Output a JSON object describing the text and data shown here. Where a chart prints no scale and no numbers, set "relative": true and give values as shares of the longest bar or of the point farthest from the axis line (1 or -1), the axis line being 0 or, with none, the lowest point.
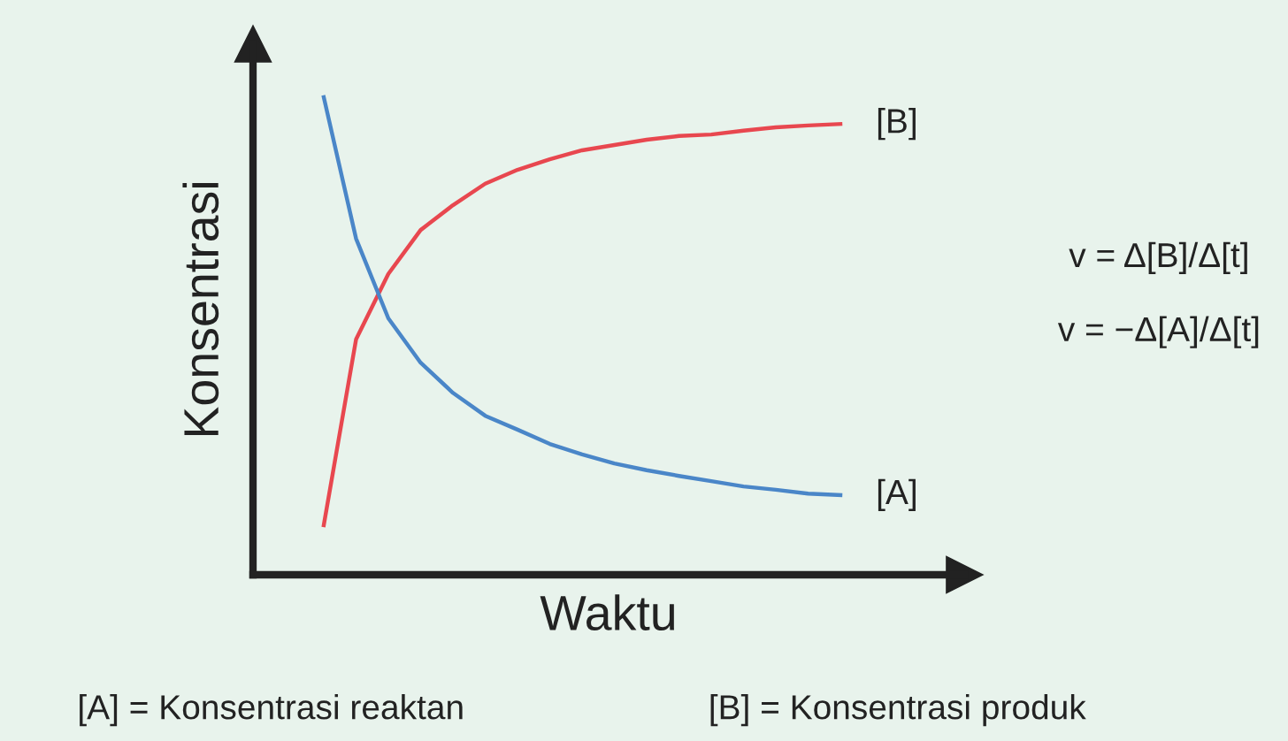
{
  "chart_data": {
    "type": "line",
    "relative": true,
    "xlabel": "Waktu",
    "ylabel": "Konsentrasi",
    "legend": false,
    "marker": "none",
    "line_style": "solid",
    "categories": [
      null,
      null,
      null,
      null,
      null,
      null,
      null,
      null,
      null,
      null,
      null,
      null,
      null,
      null,
      null,
      null,
      null
    ],
    "series": [
      {
        "name": "[B]",
        "color": "#e8474f",
        "values": [
          0.104,
          0.493,
          0.63,
          0.722,
          0.774,
          0.819,
          0.848,
          0.87,
          0.889,
          0.9,
          0.911,
          0.919,
          0.922,
          0.93,
          0.937,
          0.941,
          0.944
        ]
      },
      {
        "name": "[A]",
        "color": "#4a86c8",
        "values": [
          1.0,
          0.704,
          0.537,
          0.444,
          0.381,
          0.333,
          0.304,
          0.274,
          0.252,
          0.233,
          0.219,
          0.207,
          0.196,
          0.185,
          0.178,
          0.17,
          0.167
        ]
      }
    ],
    "annotations": [
      "v = Δ[B]/Δ[t]",
      "v = −Δ[A]/Δ[t]",
      "[A] = Konsentrasi reaktan",
      "[B] = Konsentrasi produk"
    ]
  }
}
